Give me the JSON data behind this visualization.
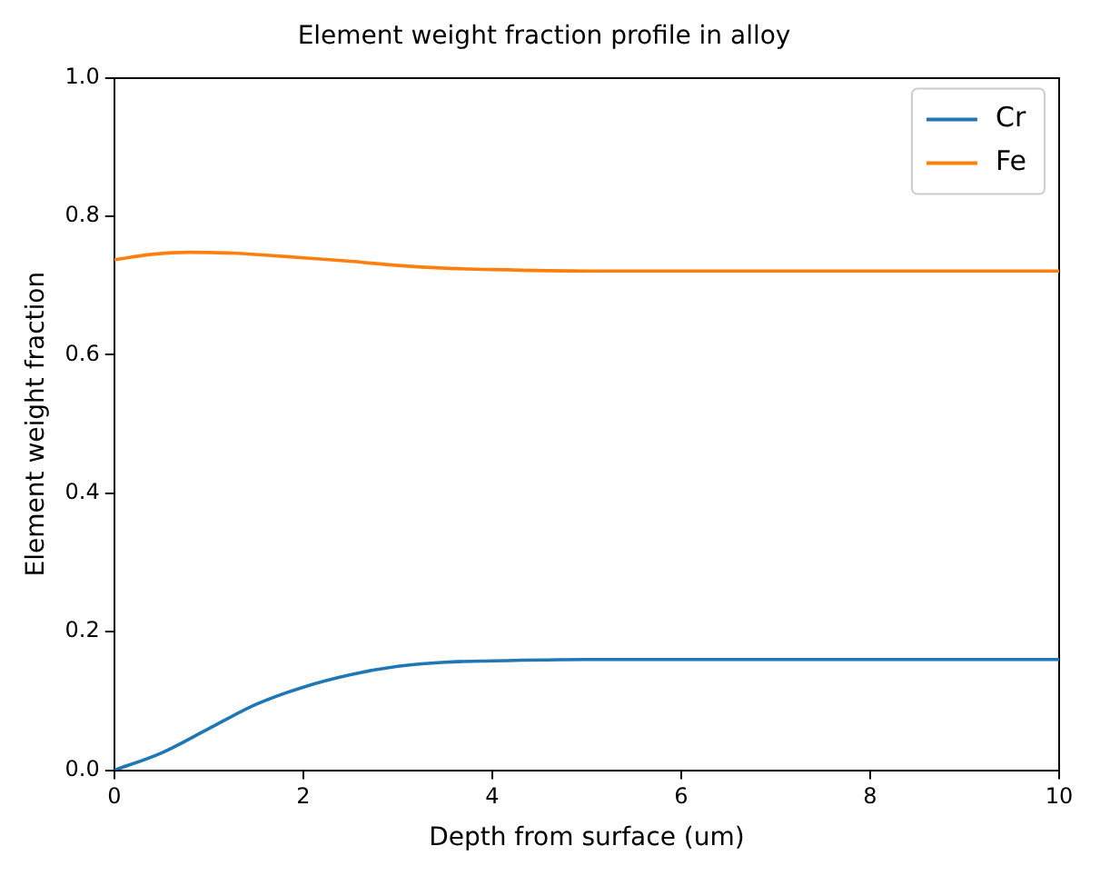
{
  "chart_data": {
    "type": "line",
    "title": "Element weight fraction profile in alloy",
    "xlabel": "Depth from surface (um)",
    "ylabel": "Element weight fraction",
    "series": [
      {
        "name": "Cr",
        "color": "#1f77b4",
        "x": [
          0,
          0.5,
          1,
          1.5,
          2,
          2.5,
          3,
          3.5,
          4,
          5,
          6,
          7,
          8,
          9,
          10
        ],
        "values": [
          0,
          0.025,
          0.06,
          0.095,
          0.12,
          0.138,
          0.15,
          0.156,
          0.158,
          0.16,
          0.16,
          0.16,
          0.16,
          0.16,
          0.16
        ]
      },
      {
        "name": "Fe",
        "color": "#ff7f0e",
        "x": [
          0,
          0.4,
          0.8,
          1.2,
          1.6,
          2,
          2.5,
          3,
          3.5,
          4,
          5,
          6,
          7,
          8,
          9,
          10
        ],
        "values": [
          0.737,
          0.745,
          0.748,
          0.747,
          0.744,
          0.74,
          0.735,
          0.729,
          0.725,
          0.723,
          0.721,
          0.721,
          0.721,
          0.721,
          0.721,
          0.721
        ]
      }
    ],
    "xlim": [
      0,
      10
    ],
    "xticks": [
      0,
      2,
      4,
      6,
      8,
      10
    ],
    "ylim": [
      0,
      1
    ],
    "yticks": [
      {
        "value": 0,
        "label": "0.0"
      },
      {
        "value": 0.2,
        "label": "0.2"
      },
      {
        "value": 0.4,
        "label": "0.4"
      },
      {
        "value": 0.6,
        "label": "0.6"
      },
      {
        "value": 0.8,
        "label": "0.8"
      },
      {
        "value": 1,
        "label": "1.0"
      }
    ],
    "grid": false,
    "legend": "top right",
    "marker": "none",
    "line_style": "solid"
  }
}
